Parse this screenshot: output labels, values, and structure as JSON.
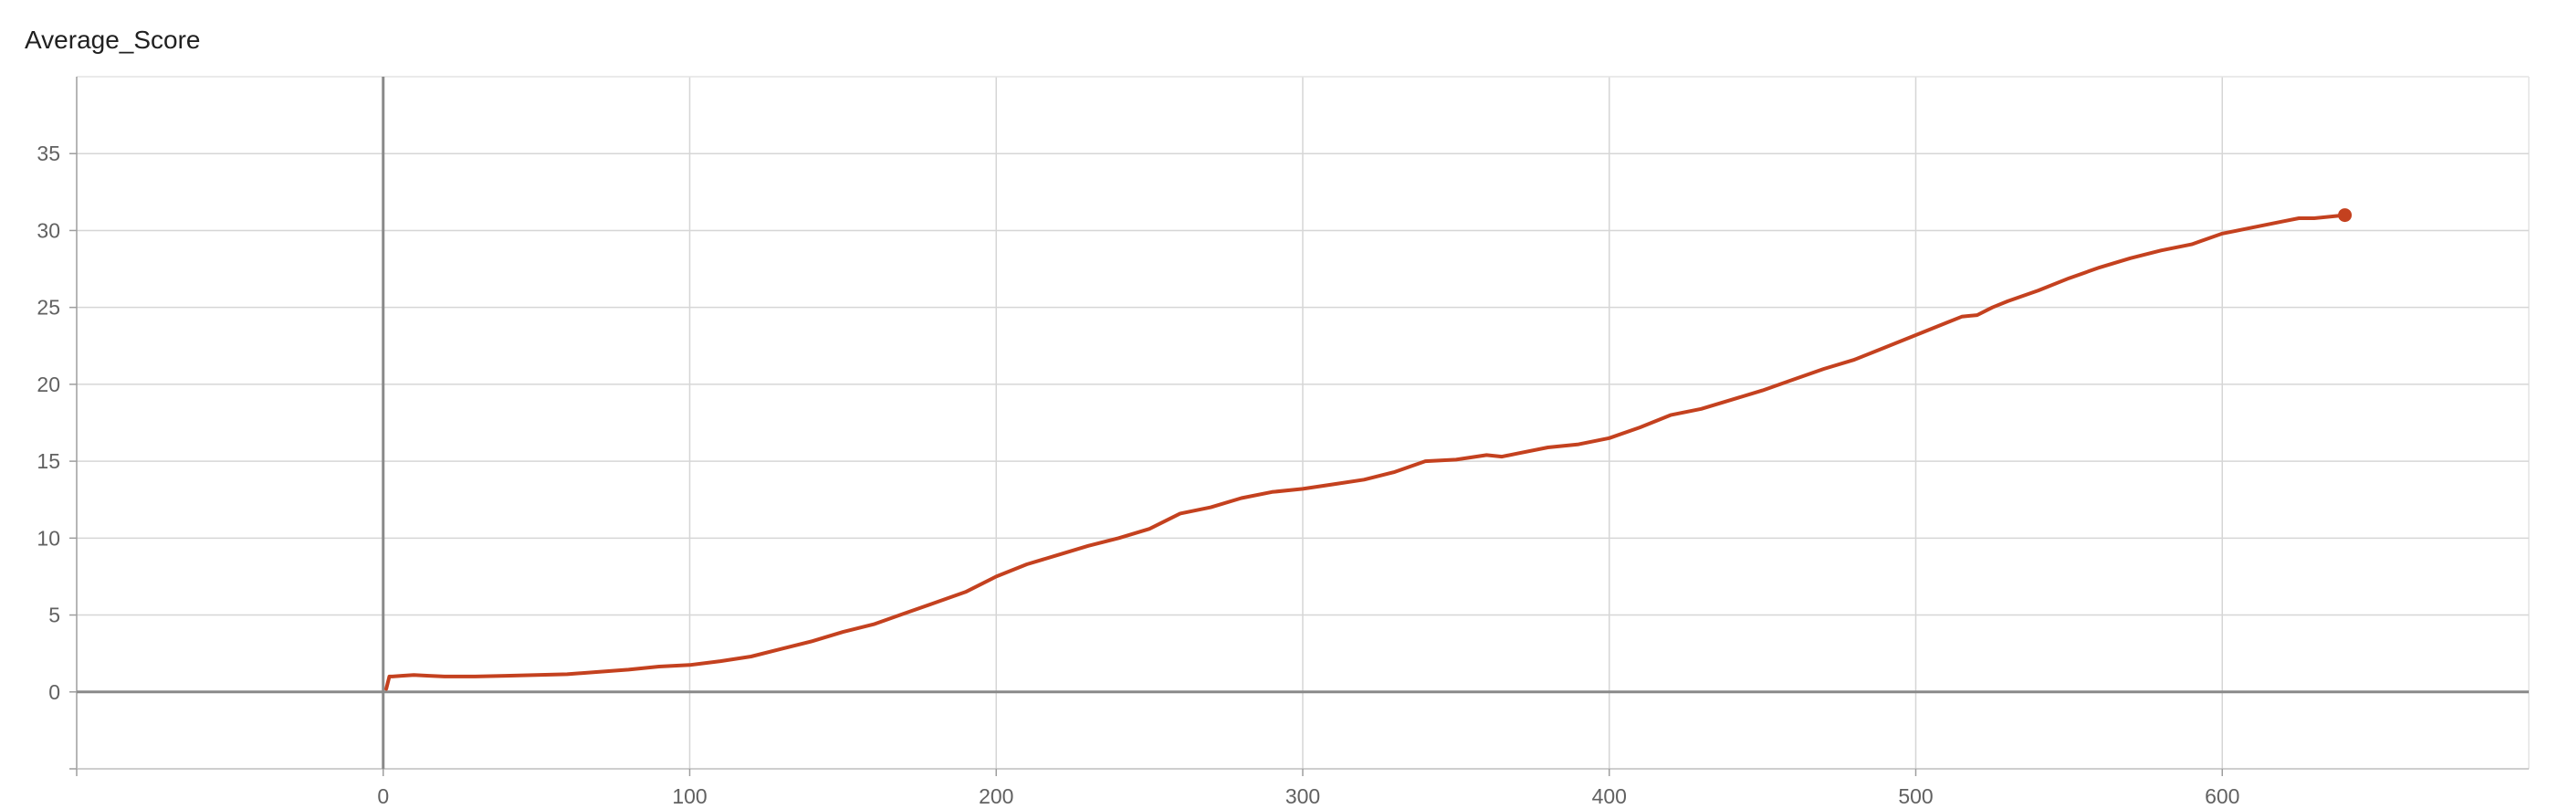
{
  "chart_data": {
    "type": "line",
    "title": "Average_Score",
    "xlabel": "",
    "ylabel": "",
    "xlim": [
      -100,
      700
    ],
    "ylim": [
      -5,
      40
    ],
    "xticks": [
      0,
      100,
      200,
      300,
      400,
      500,
      600
    ],
    "yticks": [
      0,
      5,
      10,
      15,
      20,
      25,
      30,
      35
    ],
    "grid": true,
    "legend": "none",
    "series": [
      {
        "color": "#c4411f",
        "x": [
          1,
          2,
          3,
          6,
          10,
          15,
          20,
          30,
          40,
          50,
          60,
          70,
          80,
          90,
          100,
          110,
          120,
          130,
          140,
          150,
          160,
          170,
          180,
          190,
          200,
          210,
          220,
          230,
          240,
          250,
          260,
          270,
          280,
          290,
          300,
          310,
          320,
          330,
          340,
          350,
          360,
          365,
          370,
          380,
          390,
          400,
          410,
          420,
          430,
          440,
          450,
          460,
          470,
          480,
          490,
          500,
          510,
          515,
          520,
          525,
          530,
          540,
          550,
          560,
          570,
          580,
          590,
          600,
          610,
          620,
          625,
          630,
          640
        ],
        "y": [
          0.2,
          1.0,
          1.0,
          1.05,
          1.1,
          1.05,
          1.0,
          1.0,
          1.05,
          1.1,
          1.15,
          1.3,
          1.45,
          1.65,
          1.75,
          2.0,
          2.3,
          2.8,
          3.3,
          3.9,
          4.4,
          5.1,
          5.8,
          6.5,
          7.5,
          8.3,
          8.9,
          9.5,
          10.0,
          10.6,
          11.6,
          12.0,
          12.6,
          13.0,
          13.2,
          13.5,
          13.8,
          14.3,
          15.0,
          15.1,
          15.4,
          15.3,
          15.5,
          15.9,
          16.1,
          16.5,
          17.2,
          18.0,
          18.4,
          19.0,
          19.6,
          20.3,
          21.0,
          21.6,
          22.4,
          23.2,
          24.0,
          24.4,
          24.5,
          25.0,
          25.4,
          26.1,
          26.9,
          27.6,
          28.2,
          28.7,
          29.1,
          29.8,
          30.2,
          30.6,
          30.8,
          30.8,
          31.0
        ]
      }
    ]
  }
}
